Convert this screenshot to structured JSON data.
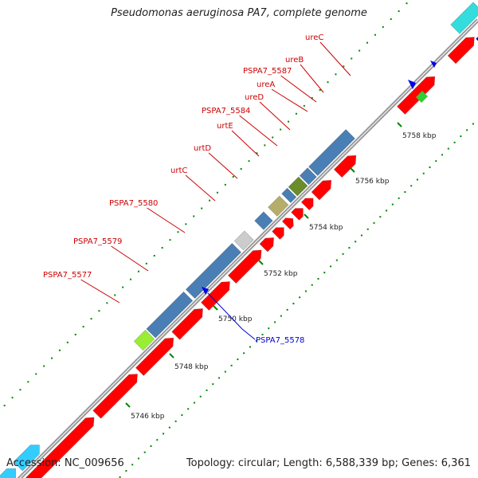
{
  "header": {
    "title": "Pseudomonas aeruginosa PA7, complete genome"
  },
  "footer": {
    "accession": "Accession: NC_009656",
    "summary": "Topology: circular; Length: 6,588,339 bp; Genes: 6,361"
  },
  "colors": {
    "forward_gene": "#ff0000",
    "feature_blue": "#4a7fb5",
    "feature_olive": "#b5ad6a",
    "feature_dark_olive": "#6b8c2a",
    "feature_light_gray": "#cccccc",
    "feature_lime": "#99ee33",
    "reverse_gene": "#0000ee",
    "cyan_gene": "#33ccff",
    "teal_gene": "#33dddd",
    "green_gene": "#33cc33",
    "backbone": "#999999",
    "tick": "#008800",
    "forward_label": "#cc0000",
    "reverse_label": "#0000cc"
  },
  "scale": {
    "unit": "kbp",
    "ticks": [
      {
        "label": "5746 kbp"
      },
      {
        "label": "5748 kbp"
      },
      {
        "label": "5750 kbp"
      },
      {
        "label": "5752 kbp"
      },
      {
        "label": "5754 kbp"
      },
      {
        "label": "5756 kbp"
      },
      {
        "label": "5758 kbp"
      }
    ]
  },
  "gene_labels": [
    {
      "name": "PSPA7_5577",
      "strand": "forward"
    },
    {
      "name": "PSPA7_5579",
      "strand": "forward"
    },
    {
      "name": "PSPA7_5580",
      "strand": "forward"
    },
    {
      "name": "urtC",
      "strand": "forward"
    },
    {
      "name": "urtD",
      "strand": "forward"
    },
    {
      "name": "urtE",
      "strand": "forward"
    },
    {
      "name": "PSPA7_5584",
      "strand": "forward"
    },
    {
      "name": "ureD",
      "strand": "forward"
    },
    {
      "name": "ureA",
      "strand": "forward"
    },
    {
      "name": "PSPA7_5587",
      "strand": "forward"
    },
    {
      "name": "ureB",
      "strand": "forward"
    },
    {
      "name": "ureC",
      "strand": "forward"
    },
    {
      "name": "PSPA7_5578",
      "strand": "reverse"
    }
  ]
}
